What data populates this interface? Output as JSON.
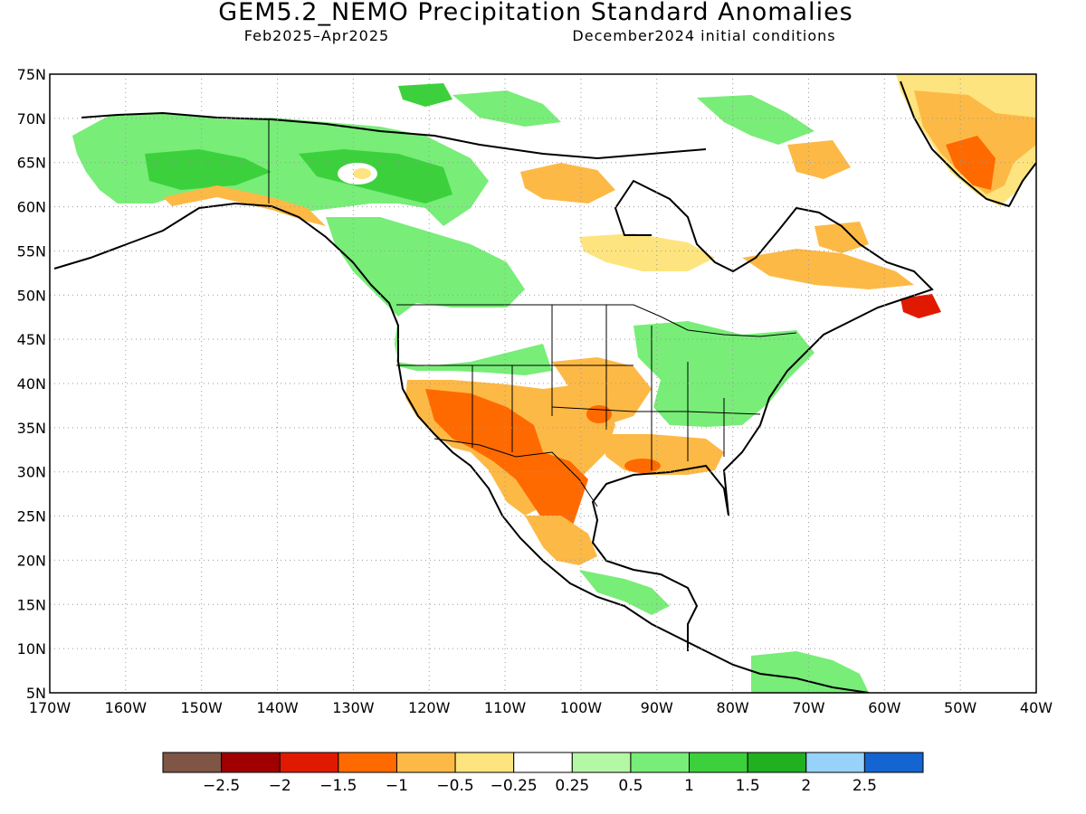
{
  "title": "GEM5.2_NEMO Precipitation Standard Anomalies",
  "period": "Feb2025–Apr2025",
  "initial_conditions": "December2024 initial conditions",
  "map": {
    "lon_min": -170,
    "lon_max": -40,
    "lat_min": 5,
    "lat_max": 75,
    "grid": "dotted",
    "lat_ticks": [
      "5N",
      "10N",
      "15N",
      "20N",
      "25N",
      "30N",
      "35N",
      "40N",
      "45N",
      "50N",
      "55N",
      "60N",
      "65N",
      "70N",
      "75N"
    ],
    "lon_ticks": [
      "170W",
      "160W",
      "150W",
      "140W",
      "130W",
      "120W",
      "110W",
      "100W",
      "90W",
      "80W",
      "70W",
      "60W",
      "50W",
      "40W"
    ]
  },
  "colorbar": {
    "labels": [
      "−2.5",
      "−2",
      "−1.5",
      "−1",
      "−0.5",
      "−0.25",
      "0.25",
      "0.5",
      "1",
      "1.5",
      "2",
      "2.5"
    ],
    "colors": [
      "#7f5546",
      "#a00000",
      "#e01a00",
      "#ff6a00",
      "#fdb946",
      "#fde47e",
      "#ffffff",
      "#b4f7a4",
      "#78ed78",
      "#3cd13c",
      "#20b020",
      "#96d2fa",
      "#1464d2"
    ]
  },
  "anomaly_regions": [
    {
      "lat": 65,
      "lon": -150,
      "color": "#78ed78"
    },
    {
      "lat": 63,
      "lon": -128,
      "color": "#3cd13c"
    },
    {
      "lat": 64,
      "lon": -125,
      "color": "#fde47e"
    },
    {
      "lat": 40,
      "lon": -112,
      "color": "#ff6a00"
    },
    {
      "lat": 30,
      "lon": -104,
      "color": "#ff6a00"
    },
    {
      "lat": 30,
      "lon": -88,
      "color": "#fdb946"
    },
    {
      "lat": 40,
      "lon": -85,
      "color": "#78ed78"
    },
    {
      "lat": 62,
      "lon": -112,
      "color": "#fdb946"
    },
    {
      "lat": 54,
      "lon": -80,
      "color": "#fdb946"
    },
    {
      "lat": 68,
      "lon": -45,
      "color": "#ff6a00"
    },
    {
      "lat": 48,
      "lon": -55,
      "color": "#e01a00"
    },
    {
      "lat": 8,
      "lon": -74,
      "color": "#78ed78"
    }
  ]
}
